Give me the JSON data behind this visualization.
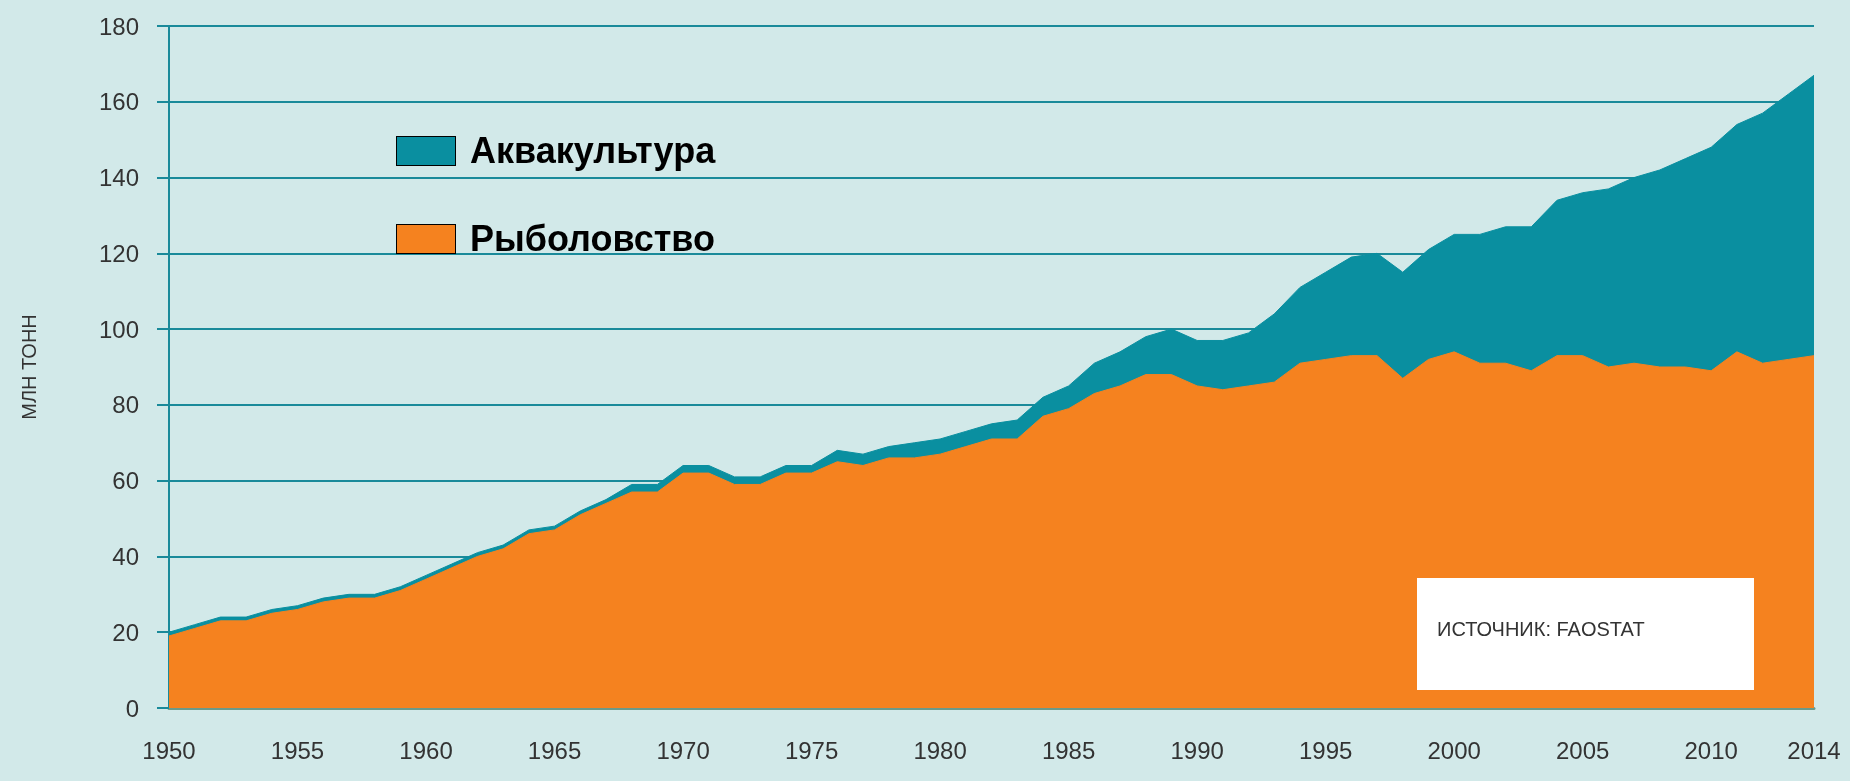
{
  "chart_data": {
    "type": "area",
    "stacked": true,
    "ylabel": "МЛН ТОНН",
    "x": [
      1950,
      1951,
      1952,
      1953,
      1954,
      1955,
      1956,
      1957,
      1958,
      1959,
      1960,
      1961,
      1962,
      1963,
      1964,
      1965,
      1966,
      1967,
      1968,
      1969,
      1970,
      1971,
      1972,
      1973,
      1974,
      1975,
      1976,
      1977,
      1978,
      1979,
      1980,
      1981,
      1982,
      1983,
      1984,
      1985,
      1986,
      1987,
      1988,
      1989,
      1990,
      1991,
      1992,
      1993,
      1994,
      1995,
      1996,
      1997,
      1998,
      1999,
      2000,
      2001,
      2002,
      2003,
      2004,
      2005,
      2006,
      2007,
      2008,
      2009,
      2010,
      2011,
      2012,
      2013,
      2014
    ],
    "series": [
      {
        "name": "Рыболовство",
        "color": "#f5821f",
        "values": [
          19,
          21,
          23,
          23,
          25,
          26,
          28,
          29,
          29,
          31,
          34,
          37,
          40,
          42,
          46,
          47,
          51,
          54,
          57,
          57,
          62,
          62,
          59,
          59,
          62,
          62,
          65,
          64,
          66,
          66,
          67,
          69,
          71,
          71,
          77,
          79,
          83,
          85,
          88,
          88,
          85,
          84,
          85,
          86,
          91,
          92,
          93,
          93,
          87,
          92,
          94,
          91,
          91,
          89,
          93,
          93,
          90,
          91,
          90,
          90,
          89,
          94,
          91,
          92,
          93
        ]
      },
      {
        "name": "Аквакультура",
        "color": "#0a8fa0",
        "values": [
          1,
          1,
          1,
          1,
          1,
          1,
          1,
          1,
          1,
          1,
          1,
          1,
          1,
          1,
          1,
          1,
          1,
          1,
          2,
          2,
          2,
          2,
          2,
          2,
          2,
          2,
          3,
          3,
          3,
          4,
          4,
          4,
          4,
          5,
          5,
          6,
          8,
          9,
          10,
          12,
          12,
          13,
          14,
          18,
          20,
          23,
          26,
          27,
          28,
          29,
          31,
          34,
          36,
          38,
          41,
          43,
          47,
          49,
          52,
          55,
          59,
          60,
          66,
          70,
          74
        ]
      }
    ],
    "xlim": [
      1950,
      2014
    ],
    "xticks": [
      1950,
      1955,
      1960,
      1965,
      1970,
      1975,
      1980,
      1985,
      1990,
      1995,
      2000,
      2005,
      2010,
      2014
    ],
    "ylim": [
      0,
      180
    ],
    "yticks": [
      0,
      20,
      40,
      60,
      80,
      100,
      120,
      140,
      160,
      180
    ],
    "grid": "y",
    "legend": "top left",
    "marker": "none",
    "annotations": [
      "ИСТОЧНИК: FAOSTAT"
    ]
  }
}
